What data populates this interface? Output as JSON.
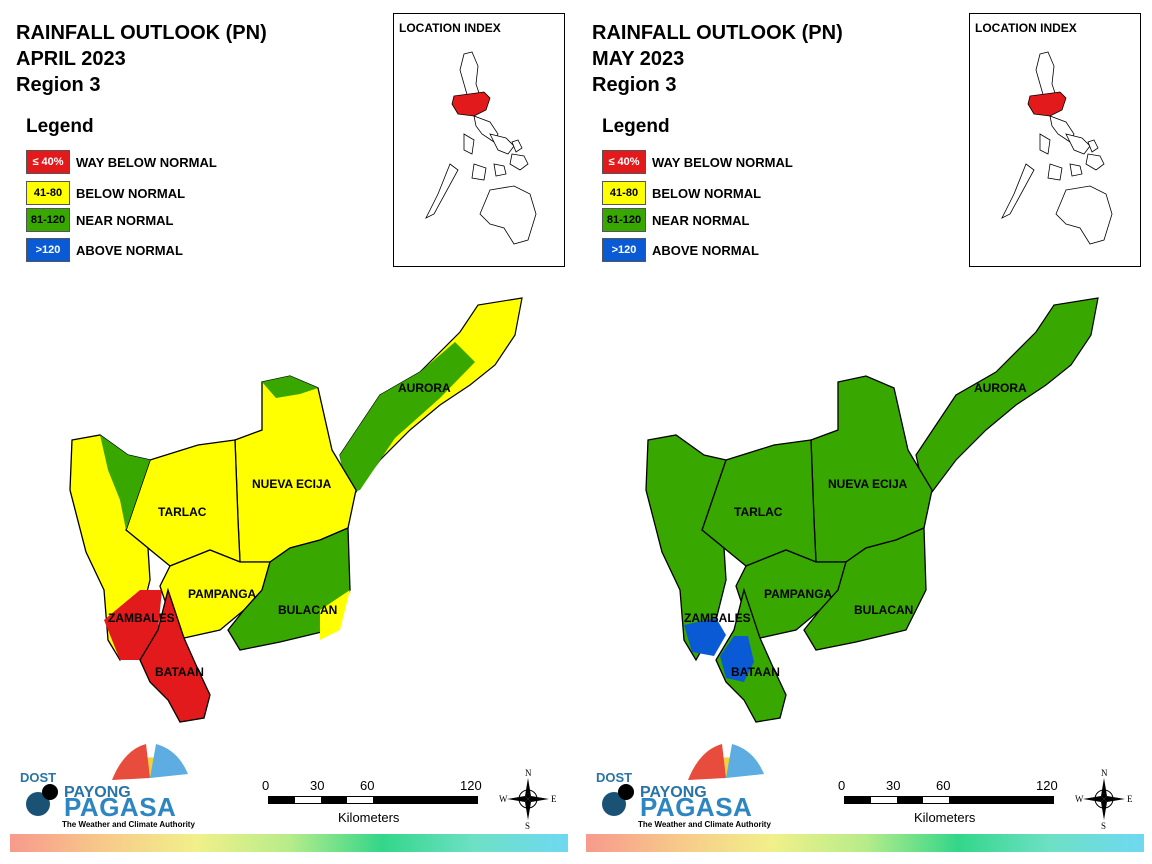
{
  "panels": [
    {
      "title_line1": "RAINFALL OUTLOOK (PN)",
      "title_line2": "APRIL 2023",
      "title_line3": "Region 3",
      "legend_title": "Legend",
      "legend": [
        {
          "swatch": "≤ 40%",
          "label": "WAY BELOW NORMAL",
          "color": "#e31a1c",
          "text_color": "#ffffff"
        },
        {
          "swatch": "41-80",
          "label": "BELOW NORMAL",
          "color": "#ffff00",
          "text_color": "#000000"
        },
        {
          "swatch": "81-120",
          "label": "NEAR NORMAL",
          "color": "#38a800",
          "text_color": "#000000"
        },
        {
          "swatch": ">120",
          "label": "ABOVE NORMAL",
          "color": "#0a5ad6",
          "text_color": "#ffffff"
        }
      ],
      "location_index": "LOCATION INDEX",
      "provinces": {
        "aurora": "AURORA",
        "nueva_ecija": "NUEVA ECIJA",
        "tarlac": "TARLAC",
        "pampanga": "PAMPANGA",
        "bulacan": "BULACAN",
        "zambales": "ZAMBALES",
        "bataan": "BATAAN"
      },
      "scale": {
        "ticks": [
          "0",
          "30",
          "60",
          "120"
        ],
        "unit": "Kilometers"
      },
      "compass": {
        "n": "N",
        "s": "S",
        "e": "E",
        "w": "W"
      },
      "logo": {
        "dost": "DOST",
        "payong": "PAYONG",
        "pagasa": "PAGASA",
        "tagline": "The Weather and Climate Authority"
      }
    },
    {
      "title_line1": "RAINFALL OUTLOOK (PN)",
      "title_line2": "MAY 2023",
      "title_line3": "Region 3",
      "legend_title": "Legend",
      "legend": [
        {
          "swatch": "≤ 40%",
          "label": "WAY BELOW NORMAL",
          "color": "#e31a1c",
          "text_color": "#ffffff"
        },
        {
          "swatch": "41-80",
          "label": "BELOW NORMAL",
          "color": "#ffff00",
          "text_color": "#000000"
        },
        {
          "swatch": "81-120",
          "label": "NEAR NORMAL",
          "color": "#38a800",
          "text_color": "#000000"
        },
        {
          "swatch": ">120",
          "label": "ABOVE NORMAL",
          "color": "#0a5ad6",
          "text_color": "#ffffff"
        }
      ],
      "location_index": "LOCATION INDEX",
      "provinces": {
        "aurora": "AURORA",
        "nueva_ecija": "NUEVA ECIJA",
        "tarlac": "TARLAC",
        "pampanga": "PAMPANGA",
        "bulacan": "BULACAN",
        "zambales": "ZAMBALES",
        "bataan": "BATAAN"
      },
      "scale": {
        "ticks": [
          "0",
          "30",
          "60",
          "120"
        ],
        "unit": "Kilometers"
      },
      "compass": {
        "n": "N",
        "s": "S",
        "e": "E",
        "w": "W"
      },
      "logo": {
        "dost": "DOST",
        "payong": "PAYONG",
        "pagasa": "PAGASA",
        "tagline": "The Weather and Climate Authority"
      }
    }
  ],
  "colors": {
    "red": "#e31a1c",
    "yellow": "#ffff00",
    "green": "#38a800",
    "blue": "#0a5ad6",
    "border": "#000000"
  }
}
